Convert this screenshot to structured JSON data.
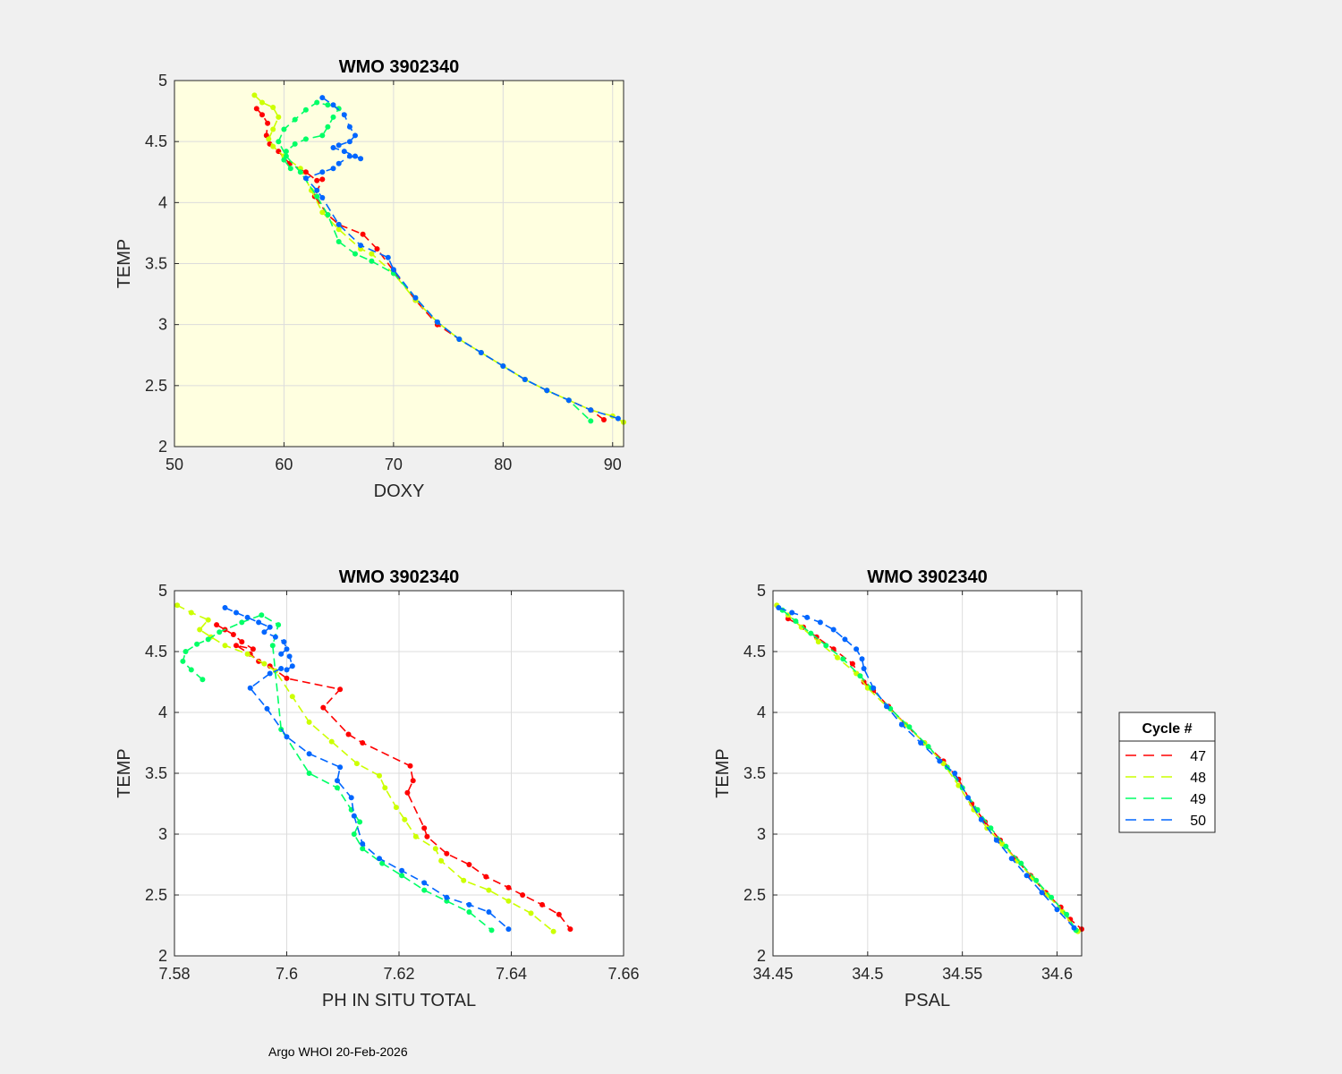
{
  "footer": "Argo WHOI 20-Feb-2026",
  "legend": {
    "title": "Cycle #",
    "entries": [
      {
        "label": "47",
        "color": "#ff0000"
      },
      {
        "label": "48",
        "color": "#ccff00"
      },
      {
        "label": "49",
        "color": "#00ff66"
      },
      {
        "label": "50",
        "color": "#0066ff"
      }
    ]
  },
  "chart_data": [
    {
      "type": "line",
      "title": "WMO 3902340",
      "xlabel": "DOXY",
      "ylabel": "TEMP",
      "background": "#ffffe0",
      "xlim": [
        50,
        91
      ],
      "ylim": [
        2,
        5
      ],
      "xticks": [
        50,
        60,
        70,
        80,
        90
      ],
      "yticks": [
        2,
        2.5,
        3,
        3.5,
        4,
        4.5,
        5
      ],
      "series": [
        {
          "name": "47",
          "color": "#ff0000",
          "x": [
            57.5,
            58,
            58.5,
            58.4,
            58.7,
            59.5,
            60.5,
            62,
            63,
            63.5,
            62.8,
            64,
            65,
            67.2,
            68.5,
            70,
            72,
            74,
            76,
            78,
            80,
            82,
            84,
            86,
            88,
            89.2
          ],
          "y": [
            4.77,
            4.72,
            4.65,
            4.55,
            4.48,
            4.42,
            4.32,
            4.25,
            4.18,
            4.19,
            4.05,
            3.9,
            3.82,
            3.74,
            3.62,
            3.44,
            3.2,
            3.0,
            2.88,
            2.77,
            2.66,
            2.55,
            2.46,
            2.38,
            2.3,
            2.22
          ]
        },
        {
          "name": "48",
          "color": "#ccff00",
          "x": [
            57.3,
            58,
            59,
            59.5,
            59,
            58.6,
            59,
            60,
            61.5,
            62.5,
            63.5,
            65,
            67,
            68,
            70,
            72,
            74,
            76,
            78,
            80,
            82,
            84,
            86,
            88,
            90,
            91
          ],
          "y": [
            4.88,
            4.82,
            4.78,
            4.7,
            4.6,
            4.52,
            4.46,
            4.38,
            4.28,
            4.1,
            3.92,
            3.78,
            3.62,
            3.58,
            3.42,
            3.2,
            3.02,
            2.88,
            2.77,
            2.66,
            2.55,
            2.46,
            2.38,
            2.3,
            2.25,
            2.2
          ]
        },
        {
          "name": "49",
          "color": "#00ff66",
          "x": [
            60.6,
            60,
            60.2,
            61,
            62,
            63.5,
            64,
            64.5,
            65,
            64,
            63,
            62,
            61,
            60,
            59.5,
            60.2,
            61.5,
            63,
            64,
            65,
            66.5,
            68,
            70,
            72,
            74,
            76,
            78,
            80,
            82,
            84,
            86,
            88
          ],
          "y": [
            4.28,
            4.35,
            4.42,
            4.48,
            4.52,
            4.55,
            4.62,
            4.7,
            4.77,
            4.8,
            4.82,
            4.76,
            4.68,
            4.6,
            4.5,
            4.38,
            4.25,
            4.05,
            3.9,
            3.68,
            3.58,
            3.52,
            3.42,
            3.22,
            3.02,
            2.88,
            2.77,
            2.66,
            2.55,
            2.46,
            2.38,
            2.21
          ]
        },
        {
          "name": "50",
          "color": "#0066ff",
          "x": [
            63.5,
            64.5,
            65.5,
            66,
            66.5,
            66,
            65,
            64.5,
            65.5,
            66.5,
            67,
            66,
            65,
            64.5,
            63.5,
            62,
            63,
            63.5,
            65,
            67,
            69.5,
            70,
            72,
            74,
            76,
            78,
            80,
            82,
            84,
            86,
            88,
            90.5
          ],
          "y": [
            4.86,
            4.8,
            4.72,
            4.62,
            4.55,
            4.5,
            4.47,
            4.45,
            4.42,
            4.38,
            4.36,
            4.38,
            4.32,
            4.28,
            4.25,
            4.2,
            4.1,
            4.04,
            3.82,
            3.65,
            3.55,
            3.45,
            3.22,
            3.02,
            2.88,
            2.77,
            2.66,
            2.55,
            2.46,
            2.38,
            2.3,
            2.23
          ]
        }
      ]
    },
    {
      "type": "line",
      "title": "WMO 3902340",
      "xlabel": "PH IN SITU TOTAL",
      "ylabel": "TEMP",
      "background": "#ffffff",
      "xlim": [
        7.58,
        7.66
      ],
      "ylim": [
        2,
        5
      ],
      "xticks": [
        7.58,
        7.6,
        7.62,
        7.64,
        7.66
      ],
      "yticks": [
        2,
        2.5,
        3,
        3.5,
        4,
        4.5,
        5
      ],
      "series": [
        {
          "name": "47",
          "color": "#ff0000",
          "x": [
            7.5875,
            7.589,
            7.5905,
            7.592,
            7.594,
            7.591,
            7.5935,
            7.595,
            7.597,
            7.6,
            7.6095,
            7.6065,
            7.611,
            7.6135,
            7.622,
            7.6225,
            7.6215,
            7.6245,
            7.625,
            7.6285,
            7.6325,
            7.6355,
            7.6395,
            7.642,
            7.6455,
            7.6485,
            7.6505
          ],
          "y": [
            4.72,
            4.68,
            4.64,
            4.58,
            4.52,
            4.55,
            4.48,
            4.42,
            4.38,
            4.28,
            4.19,
            4.04,
            3.82,
            3.75,
            3.56,
            3.44,
            3.34,
            3.05,
            2.98,
            2.84,
            2.75,
            2.65,
            2.56,
            2.5,
            2.42,
            2.34,
            2.22
          ]
        },
        {
          "name": "48",
          "color": "#ccff00",
          "x": [
            7.5805,
            7.583,
            7.586,
            7.5845,
            7.5865,
            7.589,
            7.593,
            7.596,
            7.598,
            7.601,
            7.604,
            7.608,
            7.6125,
            7.6165,
            7.6175,
            7.6195,
            7.621,
            7.623,
            7.6265,
            7.6275,
            7.6315,
            7.636,
            7.6395,
            7.6435,
            7.6475
          ],
          "y": [
            4.88,
            4.82,
            4.76,
            4.68,
            4.62,
            4.55,
            4.48,
            4.4,
            4.34,
            4.13,
            3.92,
            3.76,
            3.58,
            3.48,
            3.38,
            3.22,
            3.12,
            2.98,
            2.88,
            2.78,
            2.62,
            2.54,
            2.45,
            2.35,
            2.2
          ]
        },
        {
          "name": "49",
          "color": "#00ff66",
          "x": [
            7.585,
            7.583,
            7.5815,
            7.582,
            7.584,
            7.586,
            7.588,
            7.592,
            7.5955,
            7.5985,
            7.5975,
            7.599,
            7.604,
            7.609,
            7.6115,
            7.613,
            7.612,
            7.6135,
            7.617,
            7.6205,
            7.6245,
            7.6285,
            7.6325,
            7.6365
          ],
          "y": [
            4.27,
            4.35,
            4.42,
            4.5,
            4.56,
            4.6,
            4.66,
            4.74,
            4.8,
            4.72,
            4.55,
            3.86,
            3.5,
            3.38,
            3.2,
            3.1,
            3.0,
            2.88,
            2.76,
            2.66,
            2.54,
            2.45,
            2.36,
            2.21
          ]
        },
        {
          "name": "50",
          "color": "#0066ff",
          "x": [
            7.589,
            7.591,
            7.593,
            7.595,
            7.597,
            7.596,
            7.598,
            7.5995,
            7.6,
            7.599,
            7.6005,
            7.601,
            7.6,
            7.599,
            7.597,
            7.5935,
            7.5965,
            7.6,
            7.604,
            7.6095,
            7.609,
            7.6115,
            7.612,
            7.6135,
            7.6165,
            7.6205,
            7.6245,
            7.6285,
            7.6325,
            7.636,
            7.6395
          ],
          "y": [
            4.86,
            4.82,
            4.78,
            4.74,
            4.7,
            4.66,
            4.62,
            4.58,
            4.52,
            4.48,
            4.46,
            4.38,
            4.35,
            4.36,
            4.32,
            4.2,
            4.03,
            3.8,
            3.66,
            3.55,
            3.44,
            3.3,
            3.15,
            2.92,
            2.8,
            2.7,
            2.6,
            2.48,
            2.42,
            2.36,
            2.22
          ]
        }
      ]
    },
    {
      "type": "line",
      "title": "WMO 3902340",
      "xlabel": "PSAL",
      "ylabel": "TEMP",
      "background": "#ffffff",
      "xlim": [
        34.45,
        34.613
      ],
      "ylim": [
        2,
        5
      ],
      "xticks": [
        34.45,
        34.5,
        34.55,
        34.6
      ],
      "yticks": [
        2,
        2.5,
        3,
        3.5,
        4,
        4.5,
        5
      ],
      "series": [
        {
          "name": "47",
          "color": "#ff0000",
          "x": [
            34.458,
            34.466,
            34.473,
            34.482,
            34.492,
            34.498,
            34.503,
            34.511,
            34.52,
            34.53,
            34.54,
            34.548,
            34.555,
            34.562,
            34.57,
            34.578,
            34.586,
            34.594,
            34.602,
            34.607,
            34.613
          ],
          "y": [
            4.77,
            4.7,
            4.62,
            4.52,
            4.4,
            4.25,
            4.18,
            4.05,
            3.9,
            3.75,
            3.6,
            3.45,
            3.25,
            3.1,
            2.95,
            2.8,
            2.66,
            2.52,
            2.4,
            2.3,
            2.22
          ]
        },
        {
          "name": "48",
          "color": "#ccff00",
          "x": [
            34.452,
            34.458,
            34.465,
            34.474,
            34.484,
            34.494,
            34.5,
            34.51,
            34.52,
            34.53,
            34.54,
            34.548,
            34.556,
            34.563,
            34.571,
            34.579,
            34.587,
            34.595,
            34.603,
            34.611
          ],
          "y": [
            4.88,
            4.8,
            4.7,
            4.58,
            4.45,
            4.32,
            4.2,
            4.05,
            3.9,
            3.75,
            3.58,
            3.4,
            3.2,
            3.05,
            2.92,
            2.78,
            2.64,
            2.5,
            2.36,
            2.2
          ]
        },
        {
          "name": "49",
          "color": "#00ff66",
          "x": [
            34.455,
            34.462,
            34.47,
            34.478,
            34.487,
            34.496,
            34.502,
            34.512,
            34.522,
            34.532,
            34.542,
            34.55,
            34.558,
            34.565,
            34.573,
            34.581,
            34.589,
            34.597,
            34.605,
            34.61
          ],
          "y": [
            4.84,
            4.75,
            4.65,
            4.55,
            4.44,
            4.3,
            4.2,
            4.03,
            3.88,
            3.72,
            3.55,
            3.38,
            3.2,
            3.05,
            2.9,
            2.76,
            2.62,
            2.48,
            2.34,
            2.21
          ]
        },
        {
          "name": "50",
          "color": "#0066ff",
          "x": [
            34.453,
            34.46,
            34.468,
            34.475,
            34.482,
            34.488,
            34.494,
            34.497,
            34.498,
            34.503,
            34.51,
            34.518,
            34.528,
            34.538,
            34.546,
            34.553,
            34.56,
            34.568,
            34.576,
            34.584,
            34.592,
            34.6,
            34.609
          ],
          "y": [
            4.86,
            4.82,
            4.78,
            4.74,
            4.68,
            4.6,
            4.52,
            4.44,
            4.36,
            4.2,
            4.05,
            3.9,
            3.75,
            3.6,
            3.5,
            3.3,
            3.12,
            2.95,
            2.8,
            2.66,
            2.52,
            2.38,
            2.23
          ]
        }
      ]
    }
  ]
}
